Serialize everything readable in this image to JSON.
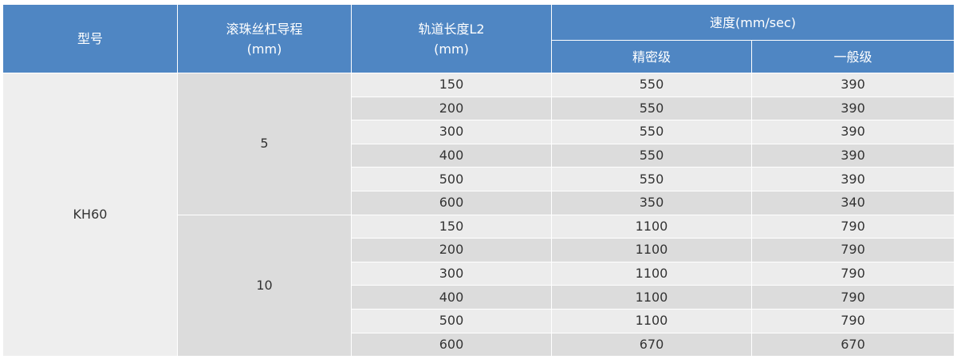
{
  "header": {
    "model": "型号",
    "lead_label": "滚珠丝杠导程",
    "lead_unit": "(mm)",
    "length_label": "轨道长度L2",
    "length_unit": "(mm)",
    "speed_label": "速度(mm/sec)",
    "precision": "精密级",
    "general": "一般级"
  },
  "model": "KH60",
  "groups": [
    {
      "lead": "5",
      "rows": [
        {
          "length": "150",
          "precision": "550",
          "general": "390"
        },
        {
          "length": "200",
          "precision": "550",
          "general": "390"
        },
        {
          "length": "300",
          "precision": "550",
          "general": "390"
        },
        {
          "length": "400",
          "precision": "550",
          "general": "390"
        },
        {
          "length": "500",
          "precision": "550",
          "general": "390"
        },
        {
          "length": "600",
          "precision": "350",
          "general": "340"
        }
      ]
    },
    {
      "lead": "10",
      "rows": [
        {
          "length": "150",
          "precision": "1100",
          "general": "790"
        },
        {
          "length": "200",
          "precision": "1100",
          "general": "790"
        },
        {
          "length": "300",
          "precision": "1100",
          "general": "790"
        },
        {
          "length": "400",
          "precision": "1100",
          "general": "790"
        },
        {
          "length": "500",
          "precision": "1100",
          "general": "790"
        },
        {
          "length": "600",
          "precision": "670",
          "general": "670"
        }
      ]
    }
  ]
}
